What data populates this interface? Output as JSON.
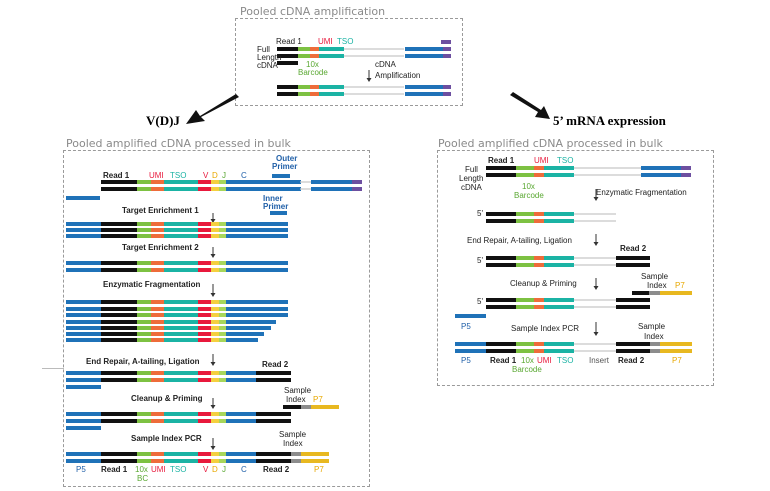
{
  "colors": {
    "black": "#111111",
    "green": "#7dc142",
    "orange": "#ee6c3a",
    "teal": "#1bb3a4",
    "gray": "#c8c8c8",
    "blue": "#1f72b8",
    "purple": "#6d4fa0",
    "red": "#e8193c",
    "yellow": "#f4d03f",
    "lime": "#a7d65a",
    "darkgray": "#8c8c8c",
    "gold": "#e8b820",
    "labelRed": "#e8193c",
    "labelTeal": "#1bb3a4",
    "labelGreen": "#5aa832",
    "labelBlue": "#1f5fa8",
    "labelGold": "#e8a800"
  },
  "top": {
    "title": "Pooled cDNA amplification",
    "read1": "Read 1",
    "umi": "UMI",
    "tso": "TSO",
    "full_length_cdna": [
      "Full",
      "Length",
      "cDNA"
    ],
    "barcode": [
      "10x",
      "Barcode"
    ],
    "amplification": [
      "cDNA",
      "Amplification"
    ]
  },
  "vdj_heading": "V(D)J",
  "mrna_heading": "5’ mRNA expression",
  "left": {
    "title": "Pooled amplified cDNA processed in bulk",
    "read1": "Read 1",
    "umi": "UMI",
    "tso": "TSO",
    "v": "V",
    "d": "D",
    "j": "J",
    "c": "C",
    "outer_primer": [
      "Outer",
      "Primer"
    ],
    "inner_primer": [
      "Inner",
      "Primer"
    ],
    "steps": [
      "Target Enrichment 1",
      "Target Enrichment 2",
      "Enzymatic Fragmentation",
      "End Repair, A-tailing, Ligation",
      "Cleanup & Priming",
      "Sample Index PCR"
    ],
    "read2": "Read 2",
    "read2_bottom": "Read 2",
    "sample_index_a": [
      "Sample",
      "Index"
    ],
    "p7_a": "P7",
    "sample_index_b": [
      "Sample",
      "Index"
    ],
    "bottom": {
      "p5": "P5",
      "read1": "Read 1",
      "bc": [
        "10x",
        "BC"
      ],
      "umi": "UMI",
      "tso": "TSO",
      "v": "V",
      "d": "D",
      "j": "J",
      "c": "C",
      "read2": "Read 2",
      "p7": "P7"
    }
  },
  "right": {
    "title": "Pooled amplified cDNA processed in bulk",
    "read1": "Read 1",
    "umi": "UMI",
    "tso": "TSO",
    "full_length_cdna": [
      "Full",
      "Length",
      "cDNA"
    ],
    "barcode": [
      "10x",
      "Barcode"
    ],
    "five_prime": "5'",
    "steps": [
      "Enzymatic Fragmentation",
      "End Repair, A-tailing, Ligation",
      "Cleanup & Priming",
      "Sample Index PCR"
    ],
    "read2": "Read 2",
    "sample_index_a": [
      "Sample",
      "Index"
    ],
    "p7_a": "P7",
    "p5_a": "P5",
    "sample_index_b": [
      "Sample",
      "Index"
    ],
    "bottom": {
      "p5": "P5",
      "read1": "Read 1",
      "barcode": [
        "10x",
        "Barcode"
      ],
      "umi": "UMI",
      "tso": "TSO",
      "insert": "Insert",
      "read2": "Read 2",
      "p7": "P7"
    }
  }
}
